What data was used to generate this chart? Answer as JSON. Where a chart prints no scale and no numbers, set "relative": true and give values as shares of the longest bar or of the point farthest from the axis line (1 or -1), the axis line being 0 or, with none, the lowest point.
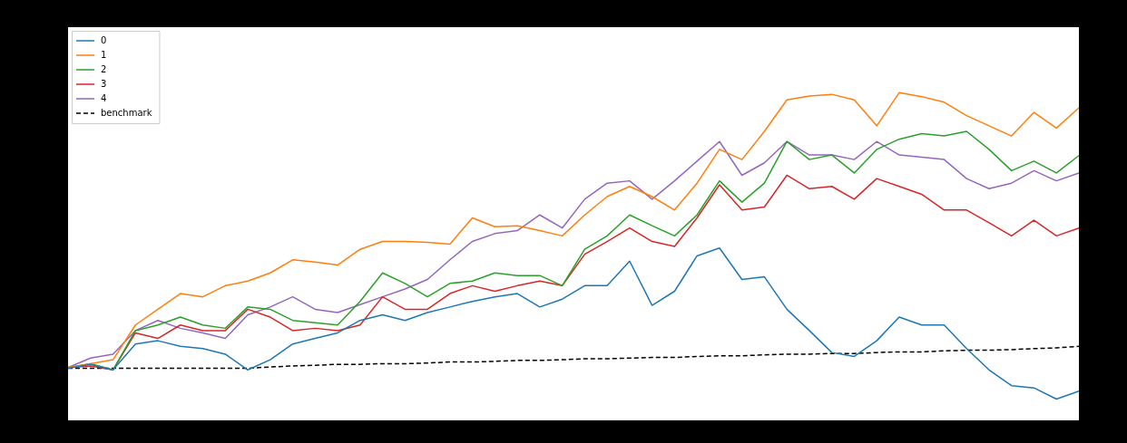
{
  "chart_data": {
    "type": "line",
    "relative": true,
    "legend": "top left",
    "grid": false,
    "categories": [
      null,
      null,
      null,
      null,
      null,
      null,
      null,
      null,
      null,
      null,
      null,
      null,
      null,
      null,
      null,
      null,
      null,
      null,
      null,
      null,
      null,
      null,
      null,
      null,
      null,
      null,
      null,
      null,
      null,
      null,
      null,
      null,
      null,
      null,
      null,
      null,
      null,
      null,
      null,
      null,
      null,
      null,
      null,
      null,
      null,
      null
    ],
    "series": [
      {
        "name": "0",
        "color": "#1f77b4",
        "values": [
          0.159,
          0.171,
          0.154,
          0.233,
          0.243,
          0.226,
          0.219,
          0.202,
          0.154,
          0.185,
          0.233,
          0.25,
          0.267,
          0.305,
          0.322,
          0.305,
          0.329,
          0.346,
          0.363,
          0.377,
          0.387,
          0.346,
          0.37,
          0.411,
          0.411,
          0.486,
          0.351,
          0.394,
          0.502,
          0.526,
          0.43,
          0.438,
          0.339,
          0.274,
          0.207,
          0.195,
          0.243,
          0.315,
          0.291,
          0.291,
          0.219,
          0.154,
          0.106,
          0.099,
          0.065,
          0.089
        ]
      },
      {
        "name": "1",
        "color": "#ff7f0e",
        "values": [
          0.161,
          0.173,
          0.185,
          0.291,
          0.339,
          0.387,
          0.377,
          0.411,
          0.425,
          0.45,
          0.49,
          0.483,
          0.474,
          0.522,
          0.546,
          0.546,
          0.543,
          0.538,
          0.618,
          0.591,
          0.594,
          0.579,
          0.563,
          0.627,
          0.683,
          0.714,
          0.683,
          0.642,
          0.724,
          0.827,
          0.796,
          0.882,
          0.978,
          0.99,
          0.995,
          0.978,
          0.899,
          1.0,
          0.988,
          0.971,
          0.93,
          0.899,
          0.868,
          0.94,
          0.892,
          0.954
        ]
      },
      {
        "name": "2",
        "color": "#2ca02c",
        "values": [
          0.161,
          0.173,
          0.154,
          0.274,
          0.291,
          0.315,
          0.291,
          0.281,
          0.346,
          0.339,
          0.305,
          0.298,
          0.291,
          0.363,
          0.45,
          0.418,
          0.377,
          0.418,
          0.425,
          0.45,
          0.442,
          0.442,
          0.411,
          0.522,
          0.563,
          0.627,
          0.594,
          0.563,
          0.627,
          0.731,
          0.666,
          0.724,
          0.851,
          0.796,
          0.81,
          0.755,
          0.827,
          0.858,
          0.875,
          0.868,
          0.882,
          0.827,
          0.762,
          0.791,
          0.755,
          0.808
        ]
      },
      {
        "name": "3",
        "color": "#d62728",
        "values": [
          0.161,
          0.166,
          0.154,
          0.267,
          0.25,
          0.291,
          0.274,
          0.274,
          0.339,
          0.315,
          0.274,
          0.281,
          0.274,
          0.291,
          0.377,
          0.339,
          0.339,
          0.387,
          0.411,
          0.394,
          0.411,
          0.425,
          0.411,
          0.507,
          0.546,
          0.587,
          0.546,
          0.531,
          0.618,
          0.719,
          0.642,
          0.651,
          0.748,
          0.707,
          0.714,
          0.675,
          0.738,
          0.714,
          0.69,
          0.642,
          0.642,
          0.603,
          0.563,
          0.611,
          0.563,
          0.587
        ]
      },
      {
        "name": "4",
        "color": "#9467bd",
        "values": [
          0.161,
          0.19,
          0.202,
          0.274,
          0.305,
          0.281,
          0.267,
          0.25,
          0.322,
          0.346,
          0.377,
          0.339,
          0.329,
          0.353,
          0.377,
          0.401,
          0.43,
          0.49,
          0.546,
          0.57,
          0.579,
          0.627,
          0.587,
          0.675,
          0.724,
          0.731,
          0.675,
          0.731,
          0.791,
          0.851,
          0.748,
          0.786,
          0.851,
          0.81,
          0.81,
          0.796,
          0.851,
          0.81,
          0.803,
          0.796,
          0.738,
          0.707,
          0.724,
          0.762,
          0.731,
          0.755
        ]
      },
      {
        "name": "benchmark",
        "color": "#000000",
        "line_style": "dashed",
        "values": [
          0.159,
          0.159,
          0.159,
          0.159,
          0.159,
          0.159,
          0.159,
          0.159,
          0.159,
          0.163,
          0.166,
          0.168,
          0.171,
          0.171,
          0.173,
          0.173,
          0.175,
          0.178,
          0.178,
          0.18,
          0.183,
          0.183,
          0.185,
          0.188,
          0.188,
          0.19,
          0.192,
          0.192,
          0.195,
          0.197,
          0.197,
          0.2,
          0.202,
          0.202,
          0.204,
          0.204,
          0.207,
          0.209,
          0.209,
          0.212,
          0.214,
          0.214,
          0.216,
          0.219,
          0.221,
          0.226
        ]
      }
    ]
  }
}
